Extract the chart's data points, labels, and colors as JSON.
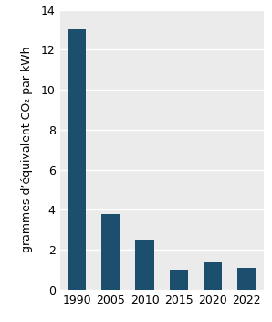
{
  "categories": [
    "1990",
    "2005",
    "2010",
    "2015",
    "2020",
    "2022"
  ],
  "values": [
    13.0,
    3.8,
    2.5,
    1.0,
    1.4,
    1.1
  ],
  "bar_color": "#1c4f6e",
  "ylabel": "grammes d’équivalent CO₂ par kWh",
  "ylim": [
    0,
    14
  ],
  "yticks": [
    0,
    2,
    4,
    6,
    8,
    10,
    12,
    14
  ],
  "plot_bg_color": "#ebebeb",
  "fig_bg_color": "#ffffff",
  "bar_width": 0.55,
  "ylabel_fontsize": 9,
  "tick_fontsize": 9
}
